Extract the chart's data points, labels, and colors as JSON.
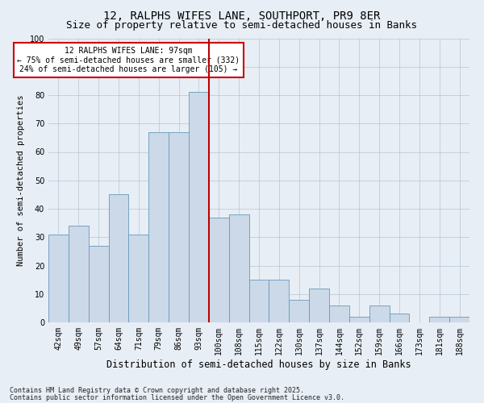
{
  "title1": "12, RALPHS WIFES LANE, SOUTHPORT, PR9 8ER",
  "title2": "Size of property relative to semi-detached houses in Banks",
  "xlabel": "Distribution of semi-detached houses by size in Banks",
  "ylabel": "Number of semi-detached properties",
  "categories": [
    "42sqm",
    "49sqm",
    "57sqm",
    "64sqm",
    "71sqm",
    "79sqm",
    "86sqm",
    "93sqm",
    "100sqm",
    "108sqm",
    "115sqm",
    "122sqm",
    "130sqm",
    "137sqm",
    "144sqm",
    "152sqm",
    "159sqm",
    "166sqm",
    "173sqm",
    "181sqm",
    "188sqm"
  ],
  "values": [
    31,
    34,
    27,
    45,
    31,
    67,
    67,
    81,
    37,
    38,
    15,
    15,
    8,
    12,
    6,
    2,
    6,
    3,
    0,
    2,
    2
  ],
  "bar_color": "#ccd9e8",
  "bar_edge_color": "#6699bb",
  "vline_color": "#bb0000",
  "annotation_title": "12 RALPHS WIFES LANE: 97sqm",
  "annotation_line1": "← 75% of semi-detached houses are smaller (332)",
  "annotation_line2": "24% of semi-detached houses are larger (105) →",
  "annotation_box_color": "#ffffff",
  "annotation_box_edge": "#cc0000",
  "bg_color": "#e8eef5",
  "footer1": "Contains HM Land Registry data © Crown copyright and database right 2025.",
  "footer2": "Contains public sector information licensed under the Open Government Licence v3.0.",
  "ylim": [
    0,
    100
  ],
  "yticks": [
    0,
    10,
    20,
    30,
    40,
    50,
    60,
    70,
    80,
    90,
    100
  ],
  "title1_fontsize": 10,
  "title2_fontsize": 9,
  "xlabel_fontsize": 8.5,
  "ylabel_fontsize": 7.5,
  "tick_fontsize": 7,
  "ann_fontsize": 7,
  "footer_fontsize": 6
}
